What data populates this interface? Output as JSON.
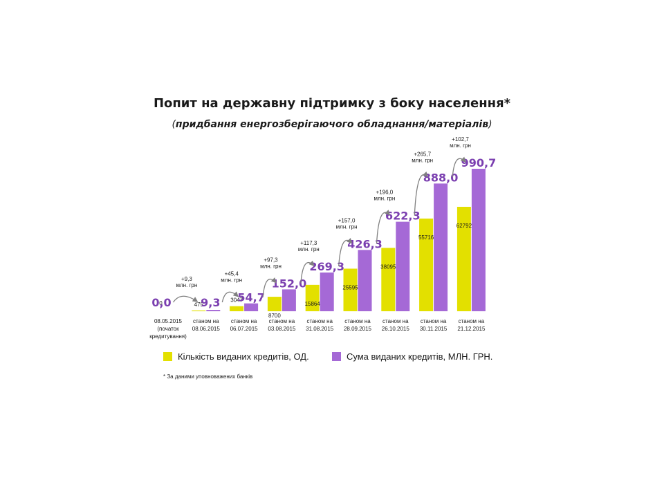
{
  "title": "Попит на державну підтримку з боку населення*",
  "subtitle_text": "придбання енергозберігаючого обладнання/матеріалів",
  "subtitle_open": "(",
  "subtitle_close": ")",
  "footnote": "* За даними уповноважених банків",
  "colors": {
    "count": "#e3e000",
    "sum": "#a569d6",
    "sum_label": "#7b3fb0",
    "arrow": "#808080"
  },
  "chart_data": {
    "type": "bar",
    "categories": [
      [
        "08.05.2015",
        "(початок",
        "кредитування)"
      ],
      [
        "станом на",
        "08.06.2015"
      ],
      [
        "станом на",
        "06.07.2015"
      ],
      [
        "станом на",
        "03.08.2015"
      ],
      [
        "станом на",
        "31.08.2015"
      ],
      [
        "станом на",
        "28.09.2015"
      ],
      [
        "станом на",
        "26.10.2015"
      ],
      [
        "станом на",
        "30.11.2015"
      ],
      [
        "станом на",
        "21.12.2015"
      ]
    ],
    "series": [
      {
        "name": "Кількість виданих кредитів, ОД.",
        "values": [
          0,
          475,
          3047,
          8700,
          15864,
          25595,
          38095,
          55716,
          62792
        ],
        "labels": [
          "0",
          "475",
          "3047",
          "8700",
          "15864",
          "25595",
          "38095",
          "55716",
          "62792"
        ]
      },
      {
        "name": "Сума виданих кредитів, МЛН. ГРН.",
        "values": [
          0.0,
          9.3,
          54.7,
          152.0,
          269.3,
          426.3,
          622.3,
          888.0,
          990.7
        ],
        "labels": [
          "0,0",
          "9,3",
          "54,7",
          "152,0",
          "269,3",
          "426,3",
          "622,3",
          "888,0",
          "990,7"
        ]
      }
    ],
    "increments": [
      {
        "value": "+9,3",
        "unit": "млн. грн"
      },
      {
        "value": "+45,4",
        "unit": "млн. грн"
      },
      {
        "value": "+97,3",
        "unit": "млн. грн"
      },
      {
        "value": "+117,3",
        "unit": "млн. грн"
      },
      {
        "value": "+157,0",
        "unit": "млн. грн"
      },
      {
        "value": "+196,0",
        "unit": "млн. грн"
      },
      {
        "value": "+265,7",
        "unit": "млн. грн"
      },
      {
        "value": "+102,7",
        "unit": "млн. грн"
      }
    ]
  }
}
